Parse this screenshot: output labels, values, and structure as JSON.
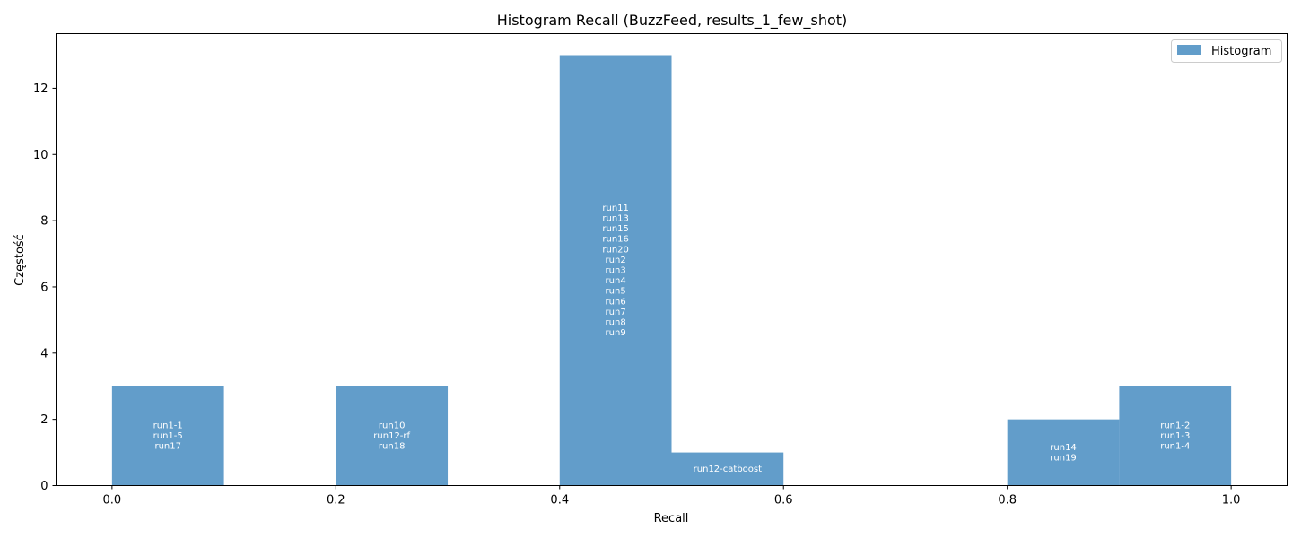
{
  "chart_data": {
    "type": "bar",
    "title": "Histogram Recall (BuzzFeed, results_1_few_shot)",
    "xlabel": "Recall",
    "ylabel": "Częstość",
    "xlim": [
      -0.05,
      1.05
    ],
    "ylim": [
      0,
      13.65
    ],
    "xticks": [
      0.0,
      0.2,
      0.4,
      0.6,
      0.8,
      1.0
    ],
    "xtick_labels": [
      "0.0",
      "0.2",
      "0.4",
      "0.6",
      "0.8",
      "1.0"
    ],
    "yticks": [
      0,
      2,
      4,
      6,
      8,
      10,
      12
    ],
    "ytick_labels": [
      "0",
      "2",
      "4",
      "6",
      "8",
      "10",
      "12"
    ],
    "grid": false,
    "legend": {
      "placement": "top-right",
      "entries": [
        "Histogram"
      ]
    },
    "bar_color": "#4c8fc3",
    "bins": [
      {
        "x0": 0.0,
        "x1": 0.1,
        "count": 3,
        "labels": [
          "run1-1",
          "run1-5",
          "run17"
        ]
      },
      {
        "x0": 0.1,
        "x1": 0.2,
        "count": 0,
        "labels": []
      },
      {
        "x0": 0.2,
        "x1": 0.3,
        "count": 3,
        "labels": [
          "run10",
          "run12-rf",
          "run18"
        ]
      },
      {
        "x0": 0.3,
        "x1": 0.4,
        "count": 0,
        "labels": []
      },
      {
        "x0": 0.4,
        "x1": 0.5,
        "count": 13,
        "labels": [
          "run11",
          "run13",
          "run15",
          "run16",
          "run20",
          "run2",
          "run3",
          "run4",
          "run5",
          "run6",
          "run7",
          "run8",
          "run9"
        ]
      },
      {
        "x0": 0.5,
        "x1": 0.6,
        "count": 1,
        "labels": [
          "run12-catboost"
        ]
      },
      {
        "x0": 0.6,
        "x1": 0.7,
        "count": 0,
        "labels": []
      },
      {
        "x0": 0.7,
        "x1": 0.8,
        "count": 0,
        "labels": []
      },
      {
        "x0": 0.8,
        "x1": 0.9,
        "count": 2,
        "labels": [
          "run14",
          "run19"
        ]
      },
      {
        "x0": 0.9,
        "x1": 1.0,
        "count": 3,
        "labels": [
          "run1-2",
          "run1-3",
          "run1-4"
        ]
      }
    ]
  }
}
